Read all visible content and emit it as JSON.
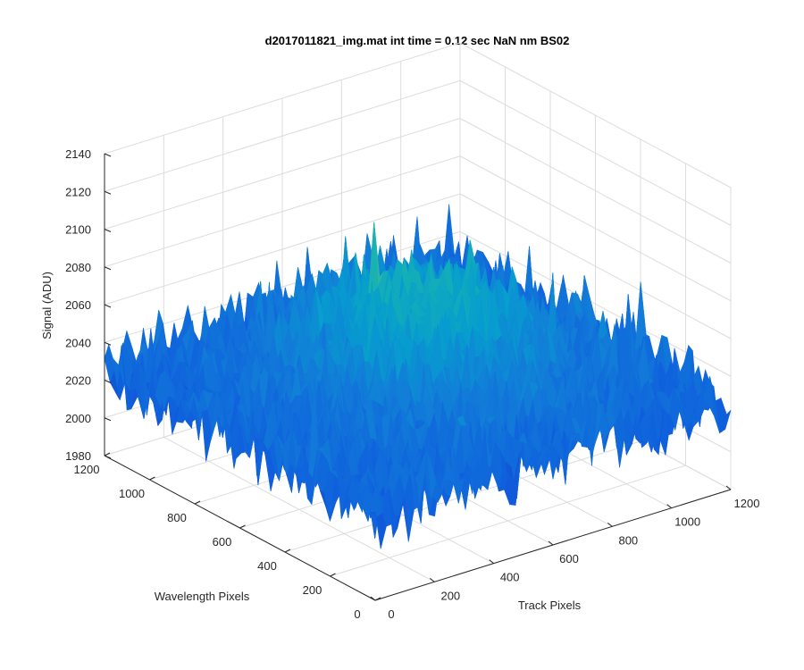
{
  "chart_data": {
    "type": "surface",
    "title": "d2017011821_img.mat int time = 0.12 sec  NaN nm BS02",
    "xlabel": "Track Pixels",
    "ylabel": "Wavelength Pixels",
    "zlabel": "Signal (ADU)",
    "xlim": [
      0,
      1200
    ],
    "ylim": [
      0,
      1200
    ],
    "zlim": [
      1980,
      2140
    ],
    "x_ticks": [
      0,
      200,
      400,
      600,
      800,
      1000,
      1200
    ],
    "y_ticks": [
      0,
      200,
      400,
      600,
      800,
      1000,
      1200
    ],
    "z_ticks": [
      1980,
      2000,
      2020,
      2040,
      2060,
      2080,
      2100,
      2120,
      2140
    ],
    "surface": {
      "grid_size": 64,
      "baseline": 2025,
      "peak_center": 2068,
      "noise_amplitude": 18,
      "colormap": "parula"
    },
    "grid": true
  }
}
